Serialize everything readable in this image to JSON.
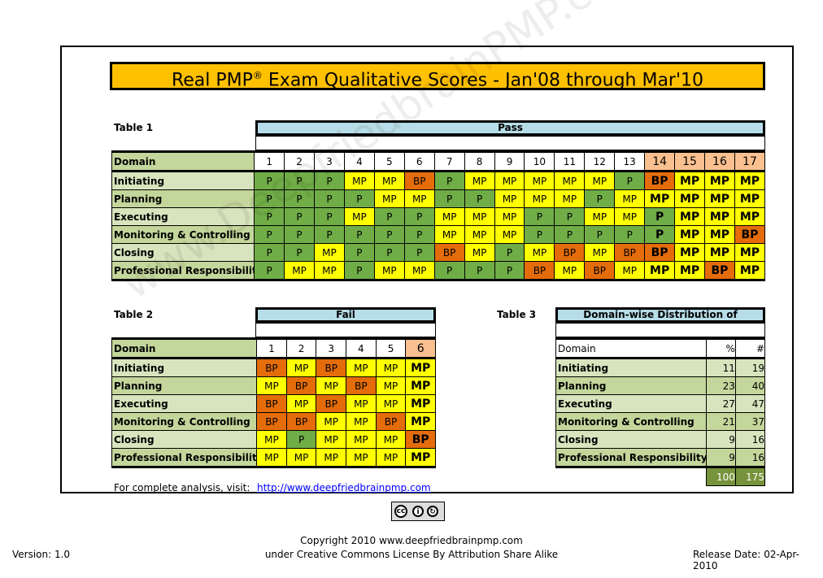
{
  "title_main": "Real PMP",
  "title_reg": "®",
  "title_rest": " Exam Qualitative Scores -  Jan'08 through Mar'10",
  "table1": {
    "label": "Table 1",
    "band": "Pass",
    "domain_header": "Domain",
    "columns": [
      "1",
      "2",
      "3",
      "4",
      "5",
      "6",
      "7",
      "8",
      "9",
      "10",
      "11",
      "12",
      "13",
      "14",
      "15",
      "16",
      "17"
    ],
    "rows": [
      {
        "domain": "Initiating",
        "scores": [
          "P",
          "P",
          "P",
          "MP",
          "MP",
          "BP",
          "P",
          "MP",
          "MP",
          "MP",
          "MP",
          "MP",
          "P",
          "BP",
          "MP",
          "MP",
          "MP"
        ]
      },
      {
        "domain": "Planning",
        "scores": [
          "P",
          "P",
          "P",
          "P",
          "MP",
          "MP",
          "P",
          "P",
          "MP",
          "MP",
          "MP",
          "P",
          "MP",
          "MP",
          "MP",
          "MP",
          "MP"
        ]
      },
      {
        "domain": "Executing",
        "scores": [
          "P",
          "P",
          "P",
          "MP",
          "P",
          "P",
          "MP",
          "MP",
          "MP",
          "P",
          "P",
          "MP",
          "MP",
          "P",
          "MP",
          "MP",
          "MP"
        ]
      },
      {
        "domain": "Monitoring & Controlling",
        "scores": [
          "P",
          "P",
          "P",
          "P",
          "P",
          "P",
          "MP",
          "MP",
          "MP",
          "P",
          "P",
          "P",
          "P",
          "P",
          "MP",
          "MP",
          "BP"
        ]
      },
      {
        "domain": "Closing",
        "scores": [
          "P",
          "P",
          "MP",
          "P",
          "P",
          "P",
          "BP",
          "MP",
          "P",
          "MP",
          "BP",
          "MP",
          "BP",
          "BP",
          "MP",
          "MP",
          "MP"
        ]
      },
      {
        "domain": "Professional Responsibility",
        "scores": [
          "P",
          "MP",
          "MP",
          "P",
          "MP",
          "MP",
          "P",
          "P",
          "P",
          "BP",
          "MP",
          "BP",
          "MP",
          "MP",
          "MP",
          "BP",
          "MP"
        ]
      }
    ]
  },
  "table2": {
    "label": "Table 2",
    "band": "Fail",
    "domain_header": "Domain",
    "columns": [
      "1",
      "2",
      "3",
      "4",
      "5",
      "6"
    ],
    "rows": [
      {
        "domain": "Initiating",
        "scores": [
          "BP",
          "MP",
          "BP",
          "MP",
          "MP",
          "MP"
        ]
      },
      {
        "domain": "Planning",
        "scores": [
          "MP",
          "BP",
          "MP",
          "BP",
          "MP",
          "MP"
        ]
      },
      {
        "domain": "Executing",
        "scores": [
          "BP",
          "MP",
          "BP",
          "MP",
          "MP",
          "MP"
        ]
      },
      {
        "domain": "Monitoring & Controlling",
        "scores": [
          "BP",
          "BP",
          "MP",
          "MP",
          "BP",
          "MP"
        ]
      },
      {
        "domain": "Closing",
        "scores": [
          "MP",
          "P",
          "MP",
          "MP",
          "MP",
          "BP"
        ]
      },
      {
        "domain": "Professional Responsibility",
        "scores": [
          "MP",
          "MP",
          "MP",
          "MP",
          "MP",
          "MP"
        ]
      }
    ]
  },
  "table3": {
    "label": "Table 3",
    "band": "Domain-wise Distribution of Questions",
    "domain_header": "Domain",
    "pct_header": "%",
    "num_header": "#",
    "rows": [
      {
        "domain": "Initiating",
        "pct": "11",
        "num": "19"
      },
      {
        "domain": "Planning",
        "pct": "23",
        "num": "40"
      },
      {
        "domain": "Executing",
        "pct": "27",
        "num": "47"
      },
      {
        "domain": "Monitoring & Controlling",
        "pct": "21",
        "num": "37"
      },
      {
        "domain": "Closing",
        "pct": "9",
        "num": "16"
      },
      {
        "domain": "Professional Responsibility",
        "pct": "9",
        "num": "16"
      }
    ],
    "total_pct": "100",
    "total_num": "175"
  },
  "analysis_label": "For complete analysis, visit:",
  "analysis_link": "http://www.deepfriedbrainpmp.com",
  "copyright_line1": "Copyright 2010 www.deepfriedbrainpmp.com",
  "copyright_line2": "under Creative Commons License By Attribution Share Alike",
  "version": "Version: 1.0",
  "release_date": "Release Date: 02-Apr-2010",
  "watermark": "www.DeepfriedbrainPMP.com",
  "colors": {
    "P": "#70ad47",
    "MP": "#ffff00",
    "BP": "#e46c0a",
    "title_bg": "#ffc000",
    "band_bg": "#b7dde8"
  }
}
